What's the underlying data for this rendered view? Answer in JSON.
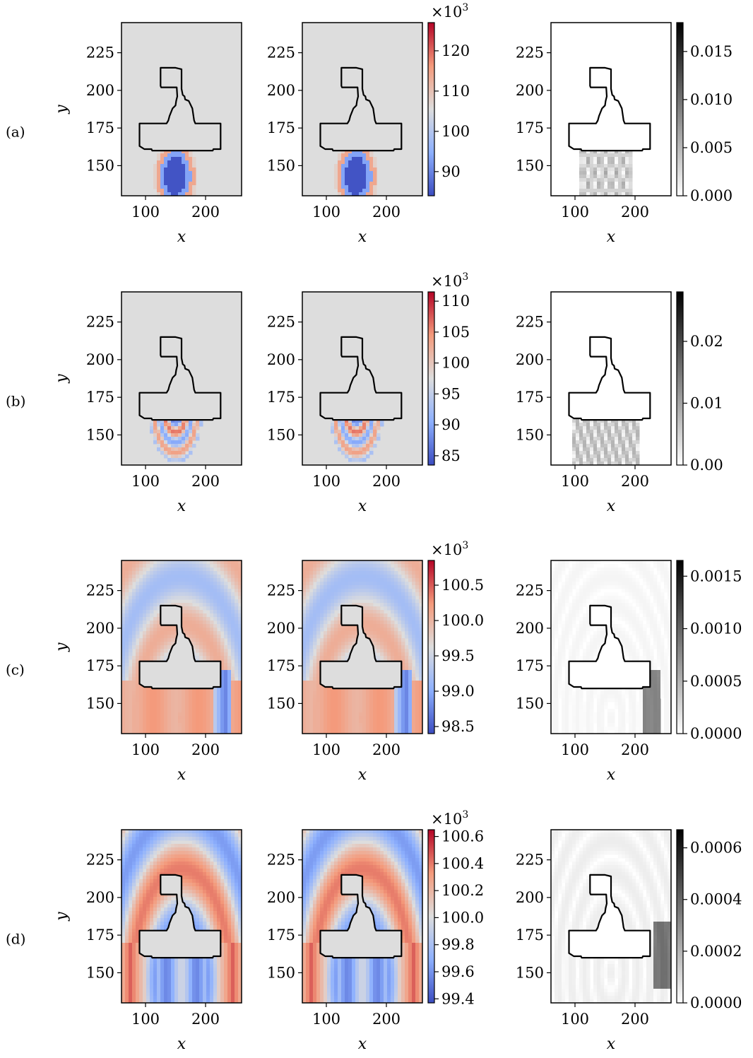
{
  "figure": {
    "x_label": "x",
    "y_label": "y",
    "x_ticks": [
      "100",
      "200"
    ],
    "y_ticks": [
      "225",
      "200",
      "175",
      "150"
    ]
  },
  "chart_data": [
    {
      "type": "heatmap",
      "row_label": "(a)",
      "panels": [
        "field",
        "field",
        "difference"
      ],
      "xlim": [
        60,
        260
      ],
      "ylim": [
        130,
        245
      ],
      "x_tick_values": [
        100,
        200
      ],
      "y_tick_values": [
        150,
        175,
        200,
        225
      ],
      "field_colorbar": {
        "colormap": "coolwarm",
        "multiplier_base": "×10",
        "multiplier_exp": "3",
        "range": [
          84,
          127
        ],
        "tick_values": [
          90,
          100,
          110,
          120
        ],
        "tick_labels": [
          "90",
          "100",
          "110",
          "120"
        ]
      },
      "diff_colorbar": {
        "colormap": "gray_r",
        "range": [
          0,
          0.018
        ],
        "tick_values": [
          0,
          0.005,
          0.01,
          0.015
        ],
        "tick_labels": [
          "0.000",
          "0.005",
          "0.010",
          "0.015"
        ]
      }
    },
    {
      "type": "heatmap",
      "row_label": "(b)",
      "panels": [
        "field",
        "field",
        "difference"
      ],
      "xlim": [
        60,
        260
      ],
      "ylim": [
        130,
        245
      ],
      "x_tick_values": [
        100,
        200
      ],
      "y_tick_values": [
        150,
        175,
        200,
        225
      ],
      "field_colorbar": {
        "colormap": "coolwarm",
        "multiplier_base": "×10",
        "multiplier_exp": "3",
        "range": [
          83.5,
          111.5
        ],
        "tick_values": [
          85,
          90,
          95,
          100,
          105,
          110
        ],
        "tick_labels": [
          "85",
          "90",
          "95",
          "100",
          "105",
          "110"
        ]
      },
      "diff_colorbar": {
        "colormap": "gray_r",
        "range": [
          0,
          0.028
        ],
        "tick_values": [
          0,
          0.01,
          0.02
        ],
        "tick_labels": [
          "0.00",
          "0.01",
          "0.02"
        ]
      }
    },
    {
      "type": "heatmap",
      "row_label": "(c)",
      "panels": [
        "field",
        "field",
        "difference"
      ],
      "xlim": [
        60,
        260
      ],
      "ylim": [
        130,
        245
      ],
      "x_tick_values": [
        100,
        200
      ],
      "y_tick_values": [
        150,
        175,
        200,
        225
      ],
      "field_colorbar": {
        "colormap": "coolwarm",
        "multiplier_base": "×10",
        "multiplier_exp": "3",
        "range": [
          98.4,
          100.85
        ],
        "tick_values": [
          98.5,
          99.0,
          99.5,
          100.0,
          100.5
        ],
        "tick_labels": [
          "98.5",
          "99.0",
          "99.5",
          "100.0",
          "100.5"
        ]
      },
      "diff_colorbar": {
        "colormap": "gray_r",
        "range": [
          0,
          0.00165
        ],
        "tick_values": [
          0,
          0.0005,
          0.001,
          0.0015
        ],
        "tick_labels": [
          "0.0000",
          "0.0005",
          "0.0010",
          "0.0015"
        ]
      }
    },
    {
      "type": "heatmap",
      "row_label": "(d)",
      "panels": [
        "field",
        "field",
        "difference"
      ],
      "xlim": [
        60,
        260
      ],
      "ylim": [
        130,
        245
      ],
      "x_tick_values": [
        100,
        200
      ],
      "y_tick_values": [
        150,
        175,
        200,
        225
      ],
      "field_colorbar": {
        "colormap": "coolwarm",
        "multiplier_base": "×10",
        "multiplier_exp": "3",
        "range": [
          99.37,
          100.65
        ],
        "tick_values": [
          99.4,
          99.6,
          99.8,
          100.0,
          100.2,
          100.4,
          100.6
        ],
        "tick_labels": [
          "99.4",
          "99.6",
          "99.8",
          "100.0",
          "100.2",
          "100.4",
          "100.6"
        ]
      },
      "diff_colorbar": {
        "colormap": "gray_r",
        "range": [
          0,
          0.00067
        ],
        "tick_values": [
          0,
          0.0002,
          0.0004,
          0.0006
        ],
        "tick_labels": [
          "0.0000",
          "0.0002",
          "0.0004",
          "0.0006"
        ]
      }
    }
  ],
  "shape_outline": {
    "description_units": "data",
    "points": [
      [
        90,
        178
      ],
      [
        90,
        163
      ],
      [
        94,
        162
      ],
      [
        98,
        161
      ],
      [
        110,
        161
      ],
      [
        111,
        160
      ],
      [
        140,
        160
      ],
      [
        160,
        160
      ],
      [
        175,
        160
      ],
      [
        185,
        160
      ],
      [
        212,
        160
      ],
      [
        213,
        161
      ],
      [
        225,
        161
      ],
      [
        225,
        178
      ],
      [
        183,
        178
      ],
      [
        181,
        180
      ],
      [
        178,
        188
      ],
      [
        172,
        193
      ],
      [
        166,
        194
      ],
      [
        165,
        196
      ],
      [
        162,
        197
      ],
      [
        160,
        201
      ],
      [
        160,
        214
      ],
      [
        150,
        215
      ],
      [
        126,
        215
      ],
      [
        125,
        215
      ],
      [
        125,
        203
      ],
      [
        126,
        202
      ],
      [
        152,
        202
      ],
      [
        153,
        196
      ],
      [
        151,
        193
      ],
      [
        150,
        190
      ],
      [
        145,
        188
      ],
      [
        140,
        183
      ],
      [
        138,
        180
      ],
      [
        135,
        178
      ]
    ]
  }
}
